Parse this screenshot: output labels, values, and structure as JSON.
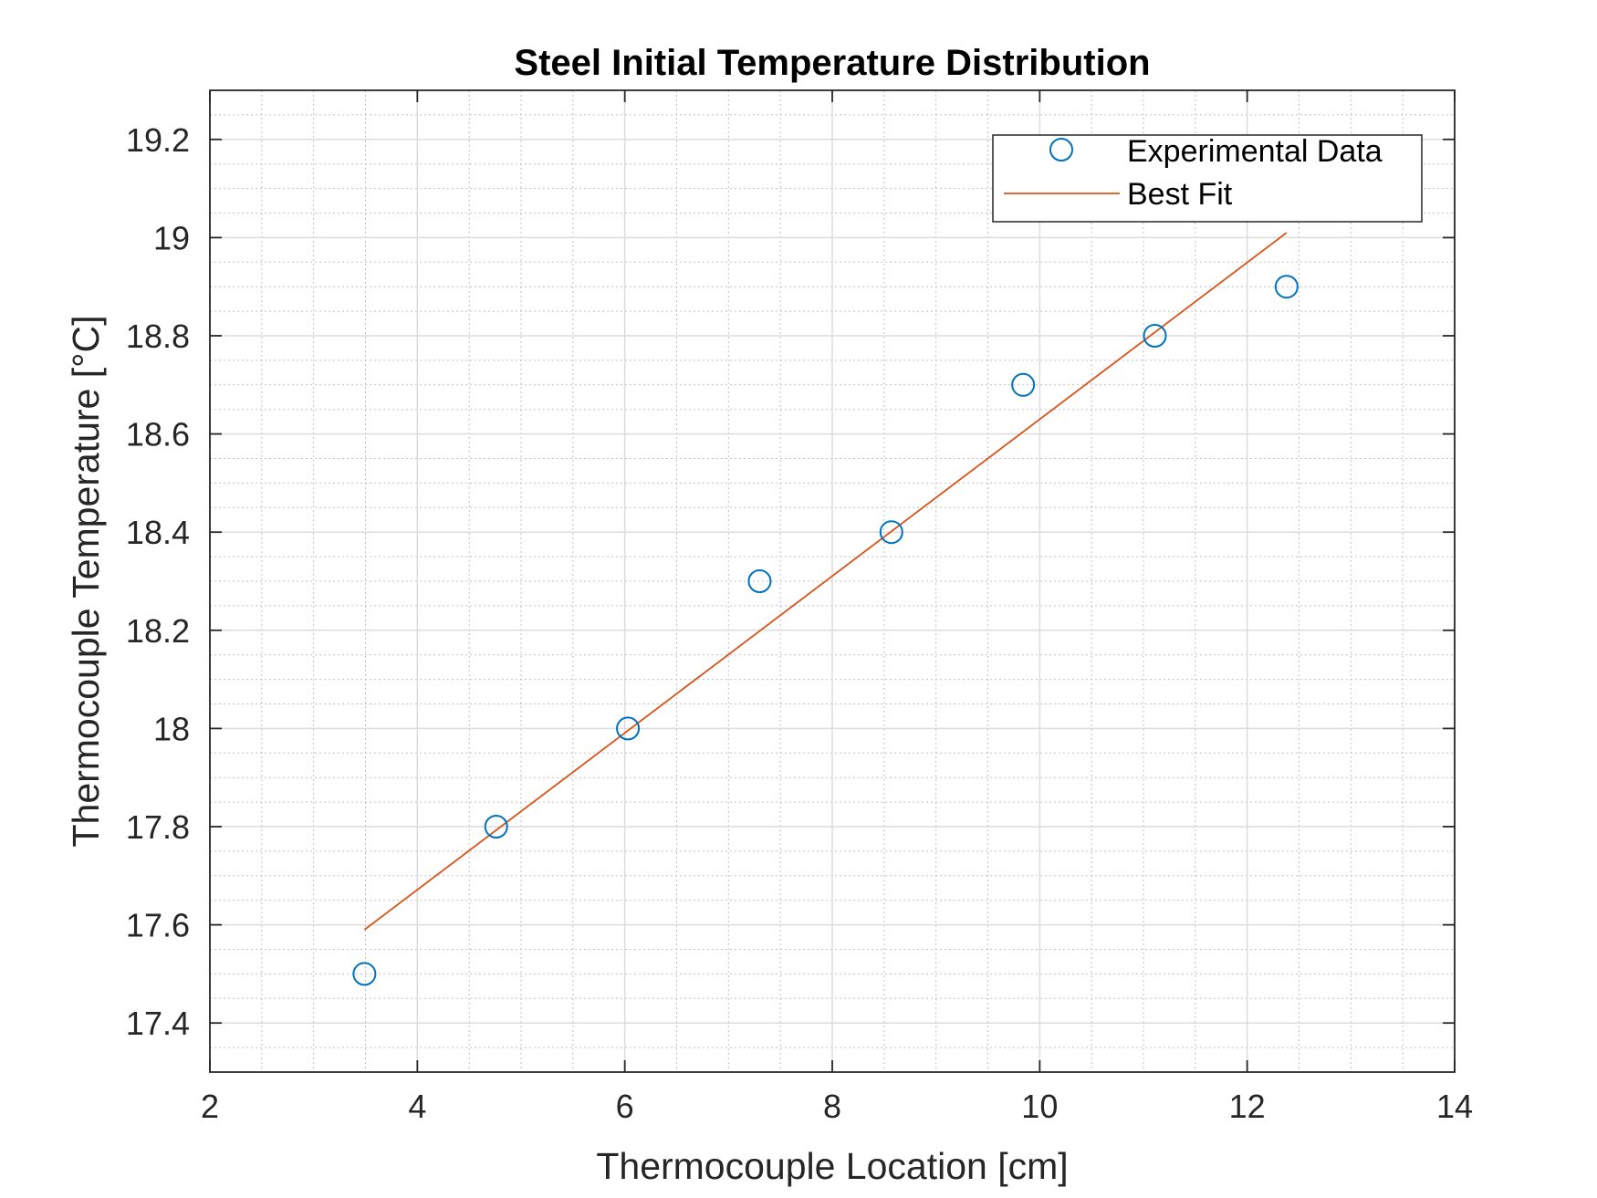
{
  "chart_data": {
    "type": "scatter",
    "title": "Steel Initial Temperature Distribution",
    "xlabel": "Thermocouple Location [cm]",
    "ylabel": "Thermocouple Temperature [°C]",
    "xlim": [
      2,
      14
    ],
    "ylim": [
      17.3,
      19.3
    ],
    "xticks": [
      2,
      4,
      6,
      8,
      10,
      12,
      14
    ],
    "yticks": [
      17.4,
      17.6,
      17.8,
      18,
      18.2,
      18.4,
      18.6,
      18.8,
      19,
      19.2
    ],
    "grid": true,
    "minor_grid": true,
    "legend_position": "top-right",
    "series": [
      {
        "name": "Experimental Data",
        "style": "markers",
        "marker": "circle",
        "color": "#0072BD",
        "x": [
          3.49,
          4.76,
          6.03,
          7.3,
          8.57,
          9.84,
          11.11,
          12.38
        ],
        "y": [
          17.5,
          17.8,
          18.0,
          18.3,
          18.4,
          18.7,
          18.8,
          18.9
        ]
      },
      {
        "name": "Best Fit",
        "style": "line",
        "color": "#D95319",
        "x": [
          3.49,
          12.38
        ],
        "y": [
          17.59,
          19.01
        ]
      }
    ]
  }
}
